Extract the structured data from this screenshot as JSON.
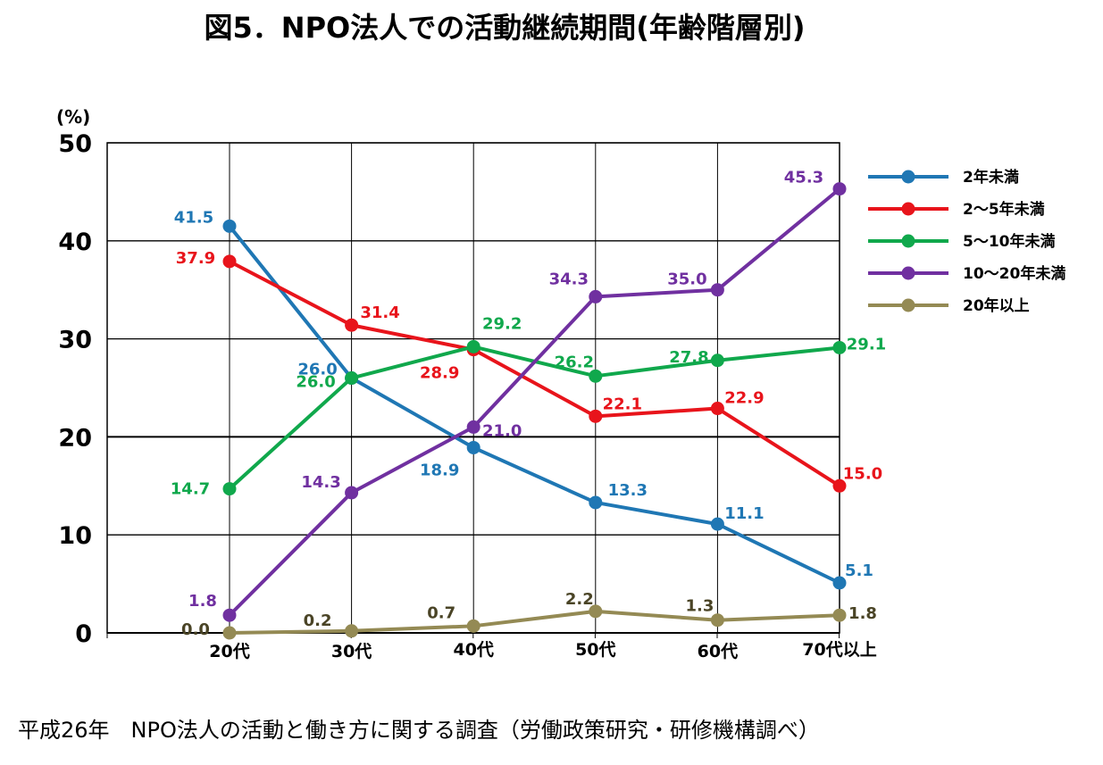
{
  "chart_data": {
    "type": "line",
    "title": "図5．NPO法人での活動継続期間(年齢階層別)",
    "ylabel": "(%)",
    "xlabel": "",
    "ylim": [
      0,
      50
    ],
    "yticks": [
      0,
      10,
      20,
      30,
      40,
      50
    ],
    "categories": [
      "20代",
      "30代",
      "40代",
      "50代",
      "60代",
      "70代以上"
    ],
    "grid": true,
    "legend_position": "right",
    "series": [
      {
        "name": "2年未満",
        "color": "#1f77b4",
        "values": [
          41.5,
          26.0,
          18.9,
          13.3,
          11.1,
          5.1
        ]
      },
      {
        "name": "2～5年未満",
        "color": "#e8141b",
        "values": [
          37.9,
          31.4,
          28.9,
          22.1,
          22.9,
          15.0
        ]
      },
      {
        "name": "5～10年未満",
        "color": "#10a84c",
        "values": [
          14.7,
          26.0,
          29.2,
          26.2,
          27.8,
          29.1
        ]
      },
      {
        "name": "10～20年未満",
        "color": "#7030a0",
        "values": [
          1.8,
          14.3,
          21.0,
          34.3,
          35.0,
          45.3
        ]
      },
      {
        "name": "20年以上",
        "color": "#948a54",
        "labelColor": "#4a4426",
        "values": [
          0.0,
          0.2,
          0.7,
          2.2,
          1.3,
          1.8
        ]
      }
    ],
    "source": "平成26年　NPO法人の活動と働き方に関する調査（労働政策研究・研修機構調べ）"
  }
}
